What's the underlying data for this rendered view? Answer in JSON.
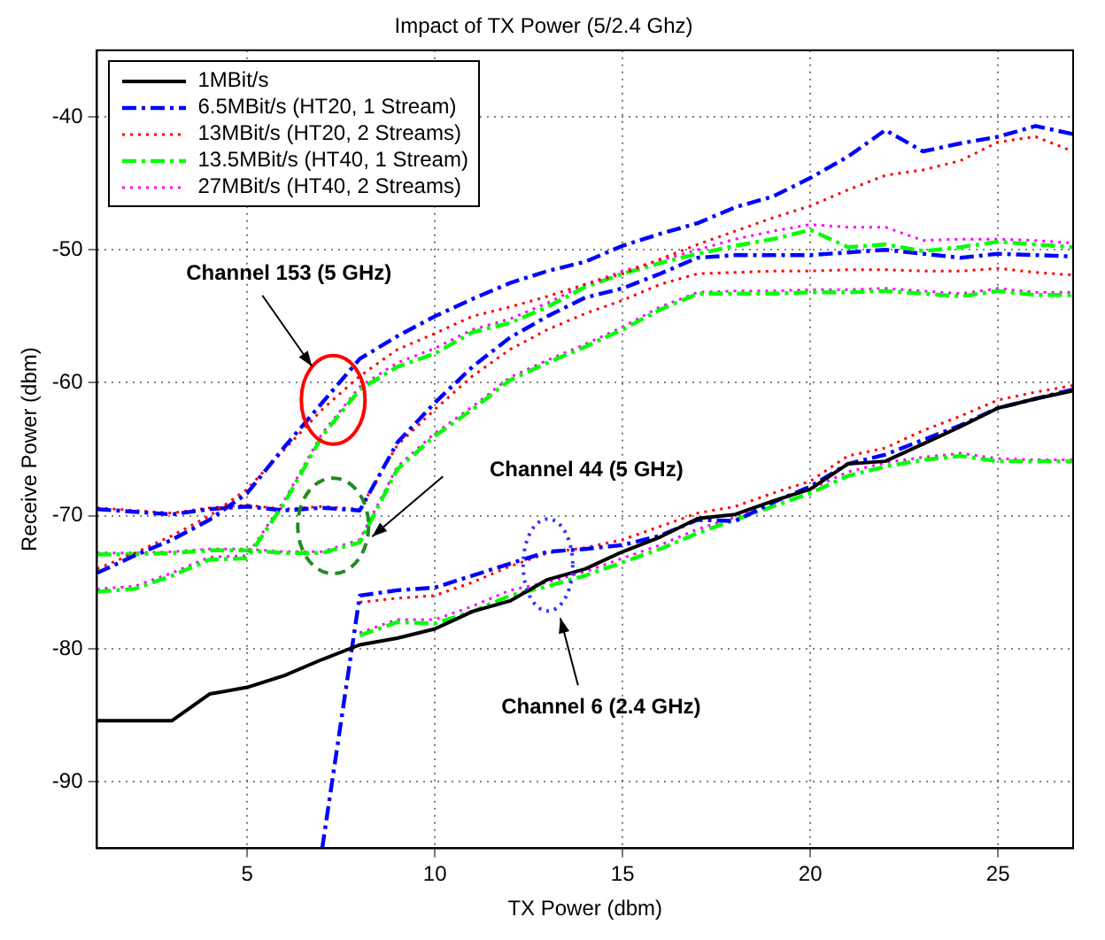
{
  "chart_data": {
    "type": "line",
    "title": "Impact of TX Power (5/2.4 Ghz)",
    "xlabel": "TX Power (dbm)",
    "ylabel": "Receive Power (dbm)",
    "x": [
      1,
      2,
      3,
      4,
      5,
      6,
      7,
      8,
      9,
      10,
      11,
      12,
      13,
      14,
      15,
      16,
      17,
      18,
      19,
      20,
      21,
      22,
      23,
      24,
      25,
      26,
      27
    ],
    "xlim": [
      1,
      27
    ],
    "xticks": [
      5,
      10,
      15,
      20,
      25
    ],
    "ylim": [
      -95,
      -35
    ],
    "yticks": [
      -90,
      -80,
      -70,
      -60,
      -50,
      -40
    ],
    "grid": true,
    "legend": "top left",
    "marker": "none",
    "annotations": [
      "Channel 153 (5 GHz)",
      "Channel 44 (5 GHz)",
      "Channel 6 (2.4 GHz)"
    ],
    "series": [
      {
        "name": "1MBit/s",
        "color": "#000000",
        "line_style": "solid",
        "values": [
          -85.4,
          -85.4,
          -85.4,
          -83.4,
          -82.9,
          -82,
          -80.8,
          -79.7,
          -79.2,
          -78.5,
          -77.2,
          -76.4,
          -74.8,
          -74,
          -72.7,
          -71.6,
          -70.2,
          -69.9,
          -68.9,
          -68,
          -66.1,
          -65.9,
          -64.6,
          -63.3,
          -61.9,
          -61.2,
          -60.6
        ]
      },
      {
        "name": "6.5MBit/s (HT20, 1 Stream)",
        "color": "#0000ff",
        "line_style": "dashed",
        "values": [
          -74.3,
          -73,
          -71.8,
          -70.3,
          -68.3,
          -64.8,
          -61.5,
          -58.2,
          -56.5,
          -55,
          -53.7,
          -52.5,
          -51.6,
          -50.9,
          -49.7,
          -48.8,
          -48,
          -46.8,
          -46,
          -44.6,
          -43,
          -41,
          -42.6,
          -42,
          -41.5,
          -40.7,
          -41.3
        ]
      },
      {
        "name": "13MBit/s (HT20, 2 Streams)",
        "color": "#ff0000",
        "line_style": "dotted",
        "values": [
          -74,
          -72.8,
          -71.5,
          -70,
          -68,
          -65,
          -62,
          -59.5,
          -57.5,
          -56.3,
          -55,
          -54.3,
          -53.5,
          -52.6,
          -51.8,
          -50.7,
          -49.6,
          -48.6,
          -47.6,
          -46.7,
          -45.5,
          -44.4,
          -44,
          -43.3,
          -41.9,
          -41.5,
          -42.6
        ]
      },
      {
        "name": "13.5MBit/s (HT40, 1 Stream)",
        "color": "#00ff00",
        "line_style": "dashed",
        "values": [
          -75.7,
          -75.5,
          -74.5,
          -73.3,
          -73.2,
          -69,
          -64,
          -60.5,
          -58.8,
          -57.8,
          -56.2,
          -55.5,
          -54.3,
          -52.8,
          -51.8,
          -51,
          -50.3,
          -49.7,
          -49.2,
          -48.5,
          -49.8,
          -49.6,
          -50.1,
          -49.8,
          -49.4,
          -49.6,
          -49.8
        ]
      },
      {
        "name": "27MBit/s (HT40, 2 Streams)",
        "color": "#ff00ff",
        "line_style": "dotted",
        "values": [
          -75.5,
          -75.3,
          -74.3,
          -73.1,
          -73,
          -68.8,
          -63.8,
          -60.3,
          -58.5,
          -57.4,
          -56,
          -55.2,
          -54,
          -52.6,
          -51.6,
          -50.8,
          -50,
          -49.2,
          -48.6,
          -48.1,
          -48.3,
          -48.3,
          -49.3,
          -49.2,
          -49.2,
          -49.3,
          -49.5
        ]
      },
      {
        "color": "#0000ff",
        "line_style": "dashed",
        "values": [
          -69.5,
          -69.7,
          -69.9,
          -69.5,
          -69.3,
          -69.6,
          -69.4,
          -69.6,
          -64.5,
          -61.5,
          -58.8,
          -56.6,
          -55,
          -53.6,
          -52.9,
          -51.8,
          -50.6,
          -50.4,
          -50.4,
          -50.4,
          -50.2,
          -50,
          -50.3,
          -50.6,
          -50.3,
          -50.4,
          -50.5
        ]
      },
      {
        "color": "#ff0000",
        "line_style": "dotted",
        "values": [
          -69.4,
          -69.6,
          -69.8,
          -69.4,
          -69.2,
          -69.5,
          -69.3,
          -69.5,
          -64.7,
          -62,
          -59.5,
          -57.5,
          -56,
          -54.8,
          -53.8,
          -52.6,
          -51.8,
          -51.7,
          -51.6,
          -51.6,
          -51.5,
          -51.5,
          -51.6,
          -51.6,
          -51.4,
          -51.7,
          -51.9
        ]
      },
      {
        "color": "#00ff00",
        "line_style": "dashed",
        "values": [
          -72.9,
          -72.9,
          -72.8,
          -72.6,
          -72.6,
          -72.8,
          -72.8,
          -72,
          -66.5,
          -64,
          -62,
          -59.8,
          -58.5,
          -57.3,
          -56,
          -54.5,
          -53.3,
          -53.3,
          -53.3,
          -53.2,
          -53.2,
          -53.1,
          -53.3,
          -53.5,
          -53.1,
          -53.4,
          -53.4
        ]
      },
      {
        "color": "#ff00ff",
        "line_style": "dotted",
        "values": [
          -72.8,
          -72.8,
          -72.7,
          -72.5,
          -72.5,
          -72.7,
          -72.7,
          -71.8,
          -66.3,
          -63.8,
          -61.8,
          -59.6,
          -58.3,
          -57.1,
          -55.8,
          -54.3,
          -53.2,
          -53.1,
          -53.1,
          -53,
          -53,
          -52.9,
          -53.1,
          -53.3,
          -52.9,
          -53.2,
          -53.2
        ]
      },
      {
        "color": "#0000ff",
        "line_style": "dashed",
        "values": [
          null,
          null,
          null,
          null,
          null,
          null,
          -95,
          -76,
          -75.6,
          -75.4,
          -74.5,
          -73.6,
          -72.7,
          -72.5,
          -72.2,
          -71.5,
          -70.3,
          -70.4,
          -69,
          -67.8,
          -66.1,
          -65.4,
          -64.3,
          -63.2,
          -61.9,
          -61.2,
          -60.5
        ]
      },
      {
        "color": "#ff0000",
        "line_style": "dotted",
        "values": [
          null,
          null,
          null,
          null,
          null,
          null,
          null,
          -76.5,
          -76.2,
          -76,
          -75,
          -73.8,
          -72.8,
          -72.4,
          -71.8,
          -70.8,
          -69.8,
          -69.3,
          -68.3,
          -67.4,
          -65.5,
          -64.9,
          -63.6,
          -62.5,
          -61.3,
          -60.7,
          -60.2
        ]
      },
      {
        "color": "#00ff00",
        "line_style": "dashed",
        "values": [
          null,
          null,
          null,
          null,
          null,
          null,
          null,
          -79,
          -78,
          -78.1,
          -77.2,
          -76,
          -75.3,
          -74.5,
          -73.5,
          -72.5,
          -71.3,
          -70.3,
          -69.3,
          -68.3,
          -67,
          -66.3,
          -65.8,
          -65.5,
          -65.9,
          -65.9,
          -65.9
        ]
      },
      {
        "color": "#ff00ff",
        "line_style": "dotted",
        "values": [
          null,
          null,
          null,
          null,
          null,
          null,
          null,
          -78.8,
          -77.8,
          -77.8,
          -76.8,
          -75.6,
          -75,
          -74.2,
          -73.2,
          -72.2,
          -71,
          -70.1,
          -68.9,
          -68,
          -66.7,
          -66,
          -65.6,
          -65.3,
          -65.7,
          -65.8,
          -65.8
        ]
      }
    ]
  }
}
